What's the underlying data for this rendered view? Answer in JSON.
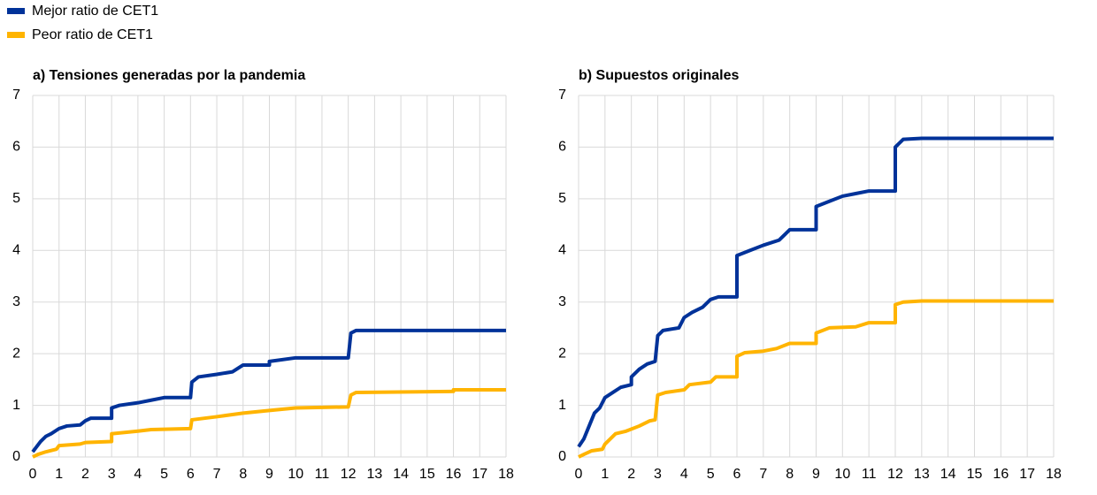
{
  "chart_data": [
    {
      "type": "line",
      "title": "a) Tensiones generadas por la pandemia",
      "xlim": [
        0,
        18
      ],
      "xticks": [
        0,
        1,
        2,
        3,
        4,
        5,
        6,
        7,
        8,
        9,
        10,
        11,
        12,
        13,
        14,
        15,
        16,
        17,
        18
      ],
      "ylim": [
        0,
        7
      ],
      "yticks": [
        0,
        1,
        2,
        3,
        4,
        5,
        6,
        7
      ],
      "grid": true,
      "series": [
        {
          "name": "Mejor ratio de CET1",
          "color": "#003299",
          "x": [
            0,
            0.3,
            0.5,
            0.7,
            1,
            1.3,
            1.8,
            2,
            2.2,
            3,
            3,
            3.3,
            4,
            4.5,
            5,
            6,
            6.05,
            6.3,
            7,
            7.6,
            8,
            9,
            9,
            10,
            12,
            12.1,
            12.3,
            18
          ],
          "values": [
            0.1,
            0.3,
            0.4,
            0.45,
            0.55,
            0.6,
            0.62,
            0.7,
            0.75,
            0.75,
            0.95,
            1.0,
            1.05,
            1.1,
            1.15,
            1.15,
            1.45,
            1.55,
            1.6,
            1.65,
            1.78,
            1.78,
            1.85,
            1.92,
            1.92,
            2.4,
            2.45,
            2.45
          ]
        },
        {
          "name": "Peor ratio de CET1",
          "color": "#ffb400",
          "x": [
            0,
            0.2,
            0.5,
            0.9,
            1,
            1.8,
            2,
            3,
            3,
            4,
            4.5,
            6,
            6.05,
            7,
            8,
            9,
            10,
            12,
            12.1,
            12.3,
            16,
            16,
            18
          ],
          "values": [
            0,
            0.05,
            0.1,
            0.15,
            0.22,
            0.25,
            0.28,
            0.3,
            0.45,
            0.5,
            0.53,
            0.55,
            0.72,
            0.78,
            0.85,
            0.9,
            0.95,
            0.97,
            1.2,
            1.25,
            1.27,
            1.3,
            1.3
          ]
        }
      ]
    },
    {
      "type": "line",
      "title": "b) Supuestos originales",
      "xlim": [
        0,
        18
      ],
      "xticks": [
        0,
        1,
        2,
        3,
        4,
        5,
        6,
        7,
        8,
        9,
        10,
        11,
        12,
        13,
        14,
        15,
        16,
        17,
        18
      ],
      "ylim": [
        0,
        7
      ],
      "yticks": [
        0,
        1,
        2,
        3,
        4,
        5,
        6,
        7
      ],
      "grid": true,
      "series": [
        {
          "color": "#003299",
          "x": [
            0,
            0.2,
            0.4,
            0.6,
            0.8,
            1,
            1.3,
            1.6,
            2,
            2,
            2.3,
            2.6,
            2.9,
            3,
            3.2,
            3.8,
            4,
            4.3,
            4.7,
            5,
            5.3,
            6,
            6,
            6.5,
            7,
            7.6,
            8,
            9,
            9,
            9.5,
            10,
            10.5,
            11,
            12,
            12,
            12.3,
            13,
            18
          ],
          "values": [
            0.2,
            0.35,
            0.6,
            0.85,
            0.95,
            1.15,
            1.25,
            1.35,
            1.4,
            1.55,
            1.7,
            1.8,
            1.85,
            2.35,
            2.45,
            2.5,
            2.7,
            2.8,
            2.9,
            3.05,
            3.1,
            3.1,
            3.9,
            4.0,
            4.1,
            4.2,
            4.4,
            4.4,
            4.85,
            4.95,
            5.05,
            5.1,
            5.15,
            5.15,
            6.0,
            6.15,
            6.17,
            6.17
          ]
        },
        {
          "color": "#ffb400",
          "x": [
            0,
            0.2,
            0.5,
            0.9,
            1,
            1.4,
            1.8,
            2.3,
            2.7,
            2.9,
            3,
            3.3,
            4,
            4.2,
            5,
            5.2,
            6,
            6,
            6.3,
            7,
            7.5,
            8,
            9,
            9,
            9.5,
            10.5,
            11,
            12,
            12,
            12.3,
            13,
            18
          ],
          "values": [
            0,
            0.05,
            0.12,
            0.15,
            0.25,
            0.45,
            0.5,
            0.6,
            0.7,
            0.72,
            1.2,
            1.25,
            1.3,
            1.4,
            1.45,
            1.55,
            1.55,
            1.95,
            2.02,
            2.05,
            2.1,
            2.2,
            2.2,
            2.4,
            2.5,
            2.52,
            2.6,
            2.6,
            2.95,
            3.0,
            3.02,
            3.02
          ]
        }
      ]
    }
  ]
}
